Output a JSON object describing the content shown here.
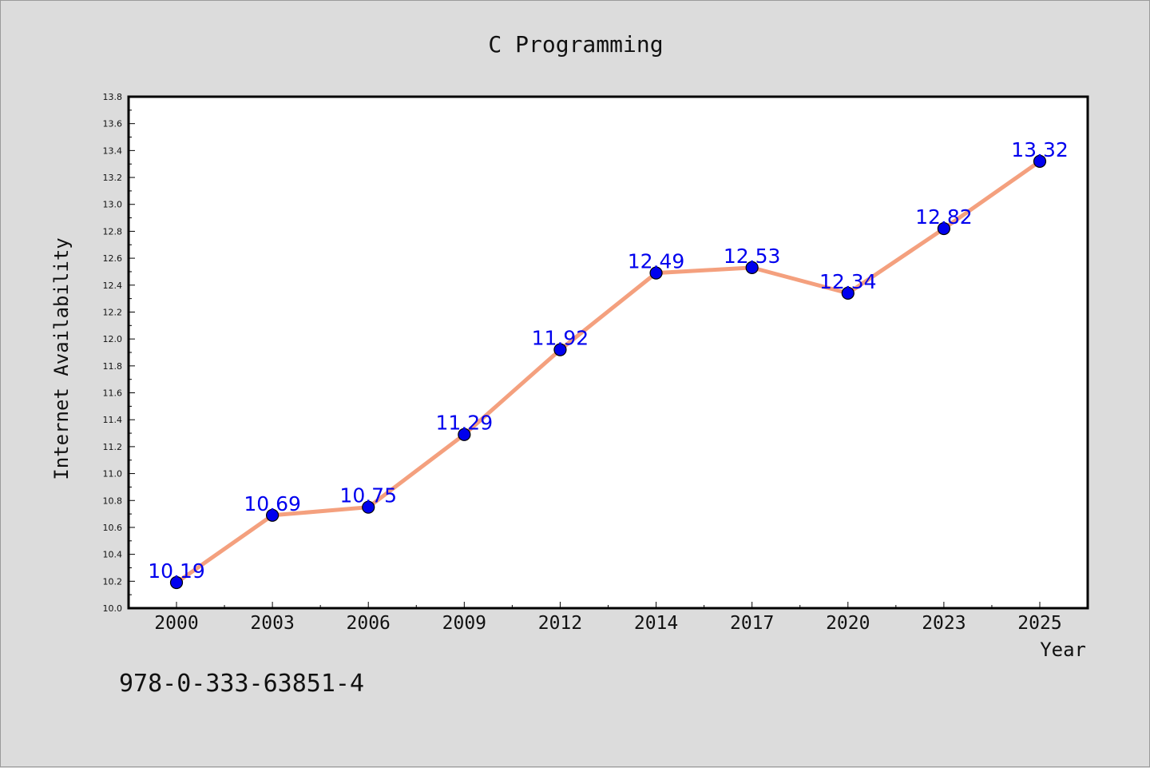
{
  "chart_data": {
    "type": "line",
    "title": "C Programming",
    "xlabel": "Year",
    "ylabel": "Internet Availability",
    "categories": [
      "2000",
      "2003",
      "2006",
      "2009",
      "2012",
      "2014",
      "2017",
      "2020",
      "2023",
      "2025"
    ],
    "series": [
      {
        "values": [
          10.19,
          10.69,
          10.75,
          11.29,
          11.92,
          12.49,
          12.53,
          12.34,
          12.82,
          13.32
        ],
        "line_color": "#f4a07e",
        "marker_color": "#0000ee"
      }
    ],
    "data_labels": [
      "10.19",
      "10.69",
      "10.75",
      "11.29",
      "11.92",
      "12.49",
      "12.53",
      "12.34",
      "12.82",
      "13.32"
    ],
    "data_label_color": "#0000ee",
    "ylim": [
      10.0,
      13.8
    ],
    "y_ticks": [
      "10.0",
      "10.2",
      "10.4",
      "10.6",
      "10.8",
      "11.0",
      "11.2",
      "11.4",
      "11.6",
      "11.8",
      "12.0",
      "12.2",
      "12.4",
      "12.6",
      "12.8",
      "13.0",
      "13.2",
      "13.4",
      "13.6",
      "13.8"
    ],
    "grid": false,
    "legend": "none"
  },
  "footer": {
    "isbn": "978-0-333-63851-4"
  }
}
